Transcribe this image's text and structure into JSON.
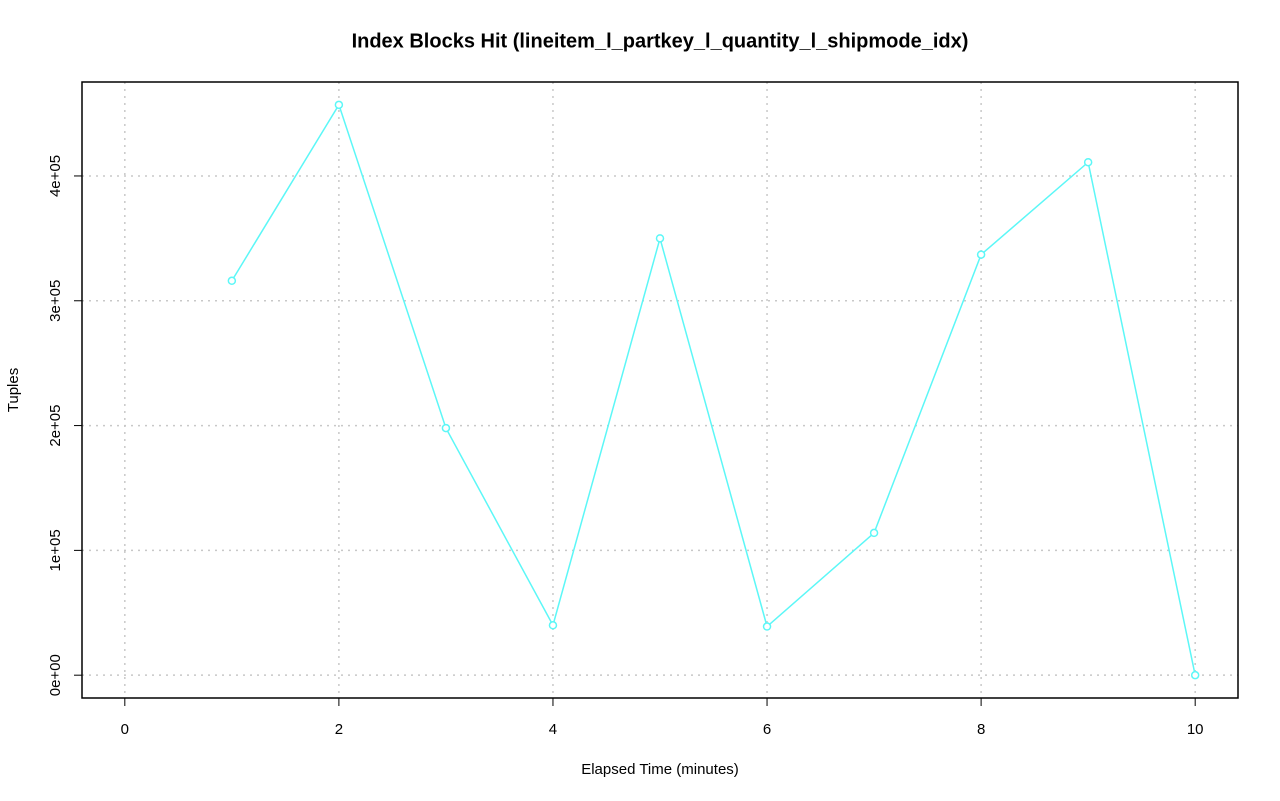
{
  "chart_data": {
    "type": "line",
    "title": "Index Blocks Hit (lineitem_l_partkey_l_quantity_l_shipmode_idx)",
    "x_label": "Elapsed Time (minutes)",
    "y_label": "Tuples",
    "x": [
      1,
      2,
      3,
      4,
      5,
      6,
      7,
      8,
      9,
      10
    ],
    "series": [
      {
        "name": "Index Blocks Hit",
        "color": "#5cf7f7",
        "values": [
          316000,
          457000,
          198000,
          40000,
          350000,
          39000,
          114000,
          337000,
          411000,
          0
        ]
      }
    ],
    "xlim": [
      -0.4,
      10.4
    ],
    "ylim": [
      -18280,
      475280
    ],
    "xticks": [
      0,
      2,
      4,
      6,
      8,
      10
    ],
    "yticks": [
      {
        "value": 0,
        "label": "0e+00"
      },
      {
        "value": 100000,
        "label": "1e+05"
      },
      {
        "value": 200000,
        "label": "2e+05"
      },
      {
        "value": 300000,
        "label": "3e+05"
      },
      {
        "value": 400000,
        "label": "4e+05"
      }
    ],
    "grid": true
  }
}
